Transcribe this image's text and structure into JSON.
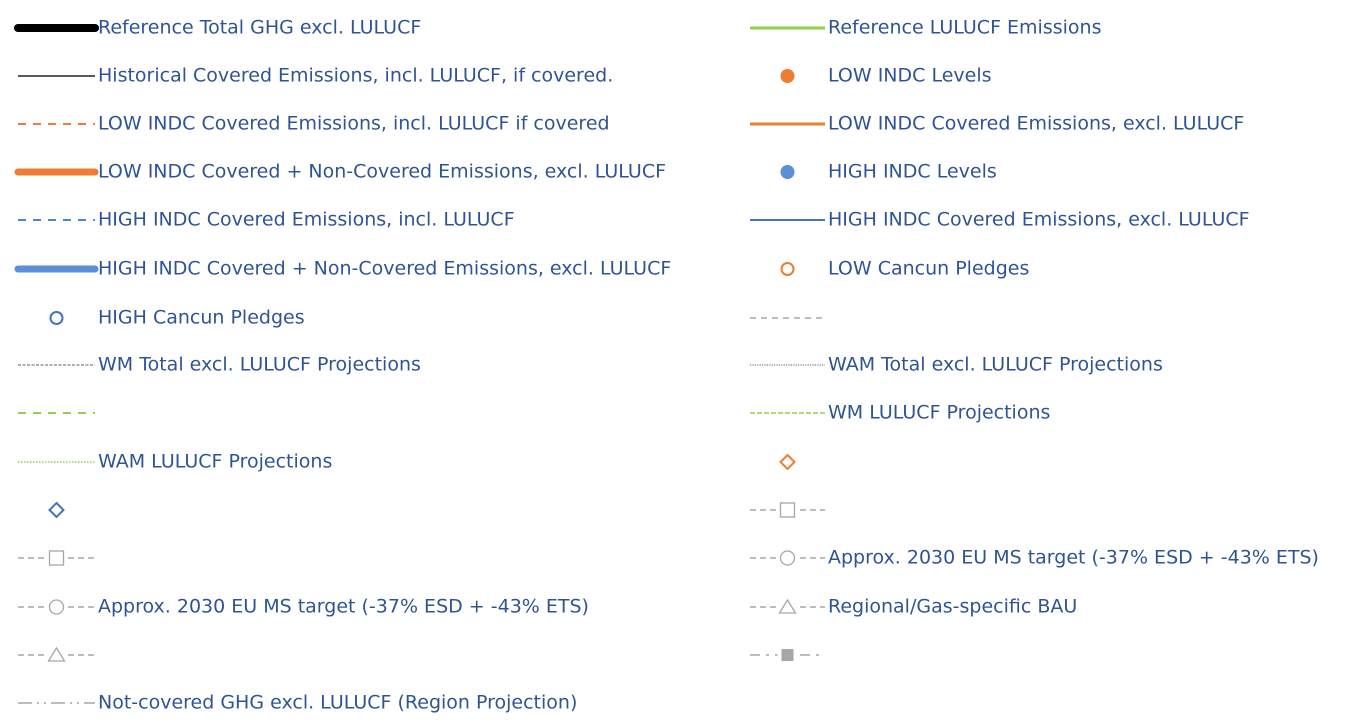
{
  "legend": {
    "left": [
      "Reference Total GHG excl. LULUCF",
      "Historical Covered Emissions, incl. LULUCF, if covered.",
      "LOW INDC Covered Emissions, incl. LULUCF if covered",
      "LOW INDC Covered + Non-Covered Emissions, excl. LULUCF",
      "HIGH INDC Covered Emissions, incl. LULUCF",
      "HIGH INDC Covered + Non-Covered Emissions, excl. LULUCF",
      "HIGH Cancun Pledges",
      "WM Total excl. LULUCF Projections",
      "WAM LULUCF Projections",
      "Approx. 2030 EU MS target (-37% ESD + -43% ETS)",
      "Not-covered GHG excl. LULUCF (Region Projection)"
    ],
    "right": [
      "Reference LULUCF Emissions",
      "LOW INDC Levels",
      "LOW INDC Covered Emissions, excl. LULUCF",
      "HIGH INDC Levels",
      "HIGH INDC Covered Emissions, excl. LULUCF",
      "LOW Cancun Pledges",
      "WAM Total excl. LULUCF Projections",
      "WM LULUCF Projections",
      "Approx. 2030 EU MS target (-37% ESD + -43% ETS)",
      "Regional/Gas-specific BAU"
    ]
  }
}
